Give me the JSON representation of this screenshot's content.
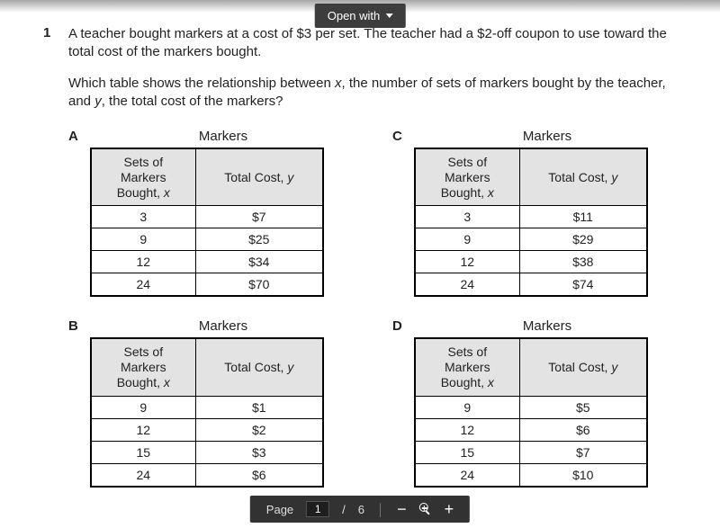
{
  "toolbar": {
    "openwith_label": "Open with"
  },
  "question": {
    "number": "1",
    "p1_a": "A teacher bought markers at a cost of $3 per set. The teacher had a $2-off coupon to use toward the total cost of the markers bought.",
    "p2_a": "Which table shows the relationship between ",
    "p2_x": "x",
    "p2_b": ", the number of sets of markers bought by the teacher, and ",
    "p2_y": "y",
    "p2_c": ", the total cost of the markers?"
  },
  "table_common": {
    "caption": "Markers",
    "col1_l1": "Sets of",
    "col1_l2": "Markers",
    "col1_l3_a": "Bought, ",
    "col1_l3_x": "x",
    "col2_a": "Total Cost, ",
    "col2_y": "y"
  },
  "options": {
    "A": {
      "letter": "A",
      "rows": [
        [
          "3",
          "$7"
        ],
        [
          "9",
          "$25"
        ],
        [
          "12",
          "$34"
        ],
        [
          "24",
          "$70"
        ]
      ]
    },
    "C": {
      "letter": "C",
      "rows": [
        [
          "3",
          "$11"
        ],
        [
          "9",
          "$29"
        ],
        [
          "12",
          "$38"
        ],
        [
          "24",
          "$74"
        ]
      ]
    },
    "B": {
      "letter": "B",
      "rows": [
        [
          "9",
          "$1"
        ],
        [
          "12",
          "$2"
        ],
        [
          "15",
          "$3"
        ],
        [
          "24",
          "$6"
        ]
      ]
    },
    "D": {
      "letter": "D",
      "rows": [
        [
          "9",
          "$5"
        ],
        [
          "12",
          "$6"
        ],
        [
          "15",
          "$7"
        ],
        [
          "24",
          "$10"
        ]
      ]
    }
  },
  "pager": {
    "page_label": "Page",
    "current": "1",
    "sep": "/",
    "total": "6"
  }
}
